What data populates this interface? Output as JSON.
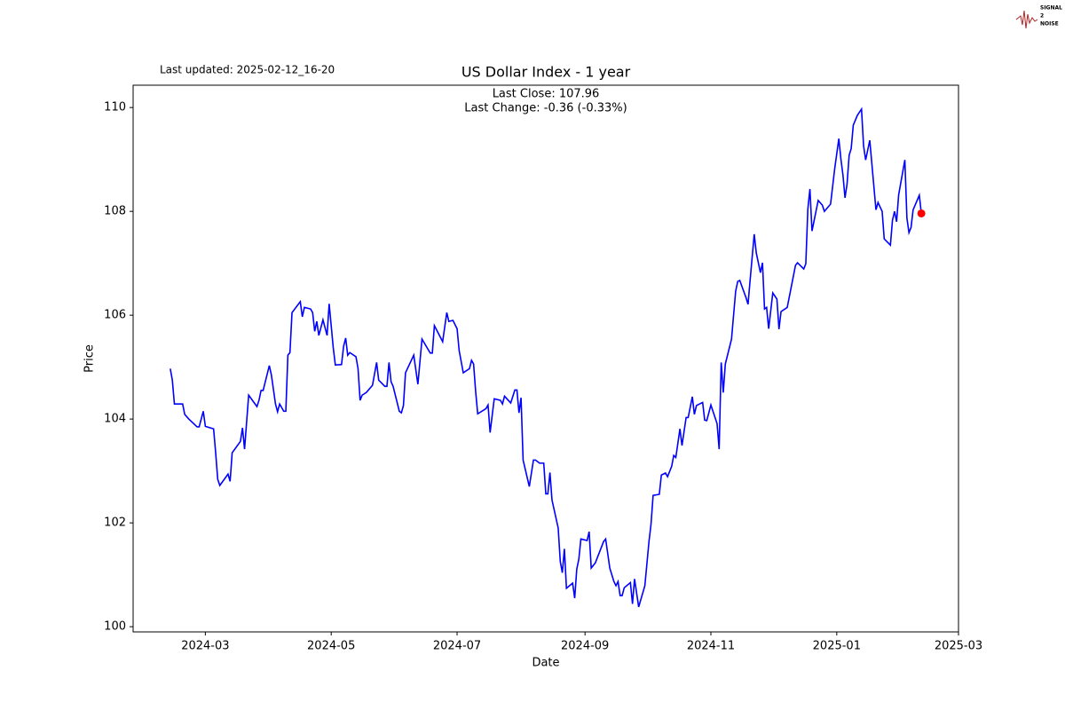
{
  "chart_data": {
    "type": "line",
    "title": "US Dollar Index - 1 year",
    "subtitle": "Last updated: 2025-02-12_16-20",
    "annotations": [
      "Last Close: 107.96",
      "Last Change: -0.36 (-0.33%)"
    ],
    "logo_text": [
      "SIGNAL",
      "2",
      "NOISE"
    ],
    "x_label": "Date",
    "y_label": "Price",
    "color": "#0000ff",
    "last_marker_color": "#ff0000",
    "x": [
      "2024-02-13",
      "2024-02-14",
      "2024-02-15",
      "2024-02-19",
      "2024-02-20",
      "2024-02-22",
      "2024-02-26",
      "2024-02-27",
      "2024-02-29",
      "2024-03-01",
      "2024-03-05",
      "2024-03-06",
      "2024-03-07",
      "2024-03-08",
      "2024-03-12",
      "2024-03-13",
      "2024-03-14",
      "2024-03-18",
      "2024-03-19",
      "2024-03-20",
      "2024-03-22",
      "2024-03-26",
      "2024-03-27",
      "2024-03-28",
      "2024-03-29",
      "2024-04-01",
      "2024-04-02",
      "2024-04-04",
      "2024-04-05",
      "2024-04-06",
      "2024-04-08",
      "2024-04-09",
      "2024-04-10",
      "2024-04-11",
      "2024-04-12",
      "2024-04-16",
      "2024-04-17",
      "2024-04-18",
      "2024-04-21",
      "2024-04-22",
      "2024-04-23",
      "2024-04-24",
      "2024-04-25",
      "2024-04-27",
      "2024-04-29",
      "2024-04-30",
      "2024-05-02",
      "2024-05-03",
      "2024-05-06",
      "2024-05-07",
      "2024-05-08",
      "2024-05-09",
      "2024-05-10",
      "2024-05-13",
      "2024-05-14",
      "2024-05-15",
      "2024-05-16",
      "2024-05-18",
      "2024-05-21",
      "2024-05-23",
      "2024-05-24",
      "2024-05-27",
      "2024-05-28",
      "2024-05-29",
      "2024-05-30",
      "2024-05-31",
      "2024-06-03",
      "2024-06-04",
      "2024-06-05",
      "2024-06-06",
      "2024-06-10",
      "2024-06-12",
      "2024-06-14",
      "2024-06-18",
      "2024-06-19",
      "2024-06-20",
      "2024-06-24",
      "2024-06-26",
      "2024-06-27",
      "2024-06-29",
      "2024-07-01",
      "2024-07-02",
      "2024-07-04",
      "2024-07-07",
      "2024-07-08",
      "2024-07-09",
      "2024-07-10",
      "2024-07-11",
      "2024-07-15",
      "2024-07-16",
      "2024-07-17",
      "2024-07-19",
      "2024-07-22",
      "2024-07-23",
      "2024-07-24",
      "2024-07-27",
      "2024-07-29",
      "2024-07-30",
      "2024-07-31",
      "2024-08-01",
      "2024-08-02",
      "2024-08-05",
      "2024-08-07",
      "2024-08-08",
      "2024-08-10",
      "2024-08-12",
      "2024-08-13",
      "2024-08-14",
      "2024-08-15",
      "2024-08-16",
      "2024-08-19",
      "2024-08-20",
      "2024-08-21",
      "2024-08-22",
      "2024-08-23",
      "2024-08-26",
      "2024-08-27",
      "2024-08-28",
      "2024-08-29",
      "2024-08-30",
      "2024-09-02",
      "2024-09-03",
      "2024-09-04",
      "2024-09-06",
      "2024-09-10",
      "2024-09-11",
      "2024-09-13",
      "2024-09-15",
      "2024-09-16",
      "2024-09-17",
      "2024-09-18",
      "2024-09-19",
      "2024-09-20",
      "2024-09-23",
      "2024-09-24",
      "2024-09-25",
      "2024-09-27",
      "2024-09-30",
      "2024-10-02",
      "2024-10-03",
      "2024-10-04",
      "2024-10-07",
      "2024-10-08",
      "2024-10-10",
      "2024-10-11",
      "2024-10-13",
      "2024-10-14",
      "2024-10-15",
      "2024-10-17",
      "2024-10-18",
      "2024-10-20",
      "2024-10-21",
      "2024-10-23",
      "2024-10-24",
      "2024-10-25",
      "2024-10-28",
      "2024-10-29",
      "2024-10-30",
      "2024-11-01",
      "2024-11-03",
      "2024-11-04",
      "2024-11-05",
      "2024-11-06",
      "2024-11-07",
      "2024-11-08",
      "2024-11-11",
      "2024-11-13",
      "2024-11-14",
      "2024-11-15",
      "2024-11-18",
      "2024-11-19",
      "2024-11-20",
      "2024-11-22",
      "2024-11-23",
      "2024-11-25",
      "2024-11-26",
      "2024-11-27",
      "2024-11-28",
      "2024-11-29",
      "2024-12-01",
      "2024-12-03",
      "2024-12-04",
      "2024-12-05",
      "2024-12-08",
      "2024-12-12",
      "2024-12-13",
      "2024-12-16",
      "2024-12-17",
      "2024-12-18",
      "2024-12-19",
      "2024-12-20",
      "2024-12-23",
      "2024-12-25",
      "2024-12-26",
      "2024-12-29",
      "2024-12-31",
      "2025-01-02",
      "2025-01-03",
      "2025-01-04",
      "2025-01-05",
      "2025-01-06",
      "2025-01-07",
      "2025-01-08",
      "2025-01-09",
      "2025-01-11",
      "2025-01-13",
      "2025-01-14",
      "2025-01-15",
      "2025-01-17",
      "2025-01-20",
      "2025-01-21",
      "2025-01-23",
      "2025-01-24",
      "2025-01-27",
      "2025-01-28",
      "2025-01-29",
      "2025-01-30",
      "2025-01-31",
      "2025-02-03",
      "2025-02-04",
      "2025-02-05",
      "2025-02-06",
      "2025-02-07",
      "2025-02-10",
      "2025-02-11"
    ],
    "values": [
      104.97,
      104.75,
      104.29,
      104.29,
      104.09,
      104.0,
      103.85,
      103.85,
      104.15,
      103.86,
      103.81,
      103.35,
      102.84,
      102.72,
      102.94,
      102.8,
      103.35,
      103.57,
      103.83,
      103.42,
      104.46,
      104.24,
      104.36,
      104.55,
      104.55,
      105.03,
      104.85,
      104.29,
      104.14,
      104.29,
      104.15,
      104.15,
      105.23,
      105.28,
      106.05,
      106.26,
      105.97,
      106.15,
      106.12,
      106.05,
      105.69,
      105.88,
      105.61,
      105.91,
      105.61,
      106.22,
      105.37,
      105.04,
      105.05,
      105.4,
      105.56,
      105.23,
      105.28,
      105.2,
      104.97,
      104.36,
      104.46,
      104.51,
      104.65,
      105.09,
      104.75,
      104.63,
      104.63,
      105.09,
      104.72,
      104.63,
      104.15,
      104.12,
      104.26,
      104.89,
      105.23,
      104.67,
      105.54,
      105.27,
      105.27,
      105.8,
      105.49,
      106.05,
      105.88,
      105.9,
      105.74,
      105.32,
      104.89,
      104.97,
      105.13,
      105.06,
      104.53,
      104.1,
      104.2,
      104.27,
      103.74,
      104.39,
      104.36,
      104.29,
      104.44,
      104.31,
      104.56,
      104.56,
      104.12,
      104.41,
      103.21,
      102.7,
      103.21,
      103.21,
      103.15,
      103.15,
      102.56,
      102.56,
      102.97,
      102.44,
      101.9,
      101.26,
      101.04,
      101.5,
      100.74,
      100.84,
      100.55,
      101.11,
      101.3,
      101.69,
      101.66,
      101.83,
      101.13,
      101.23,
      101.64,
      101.69,
      101.13,
      100.87,
      100.79,
      100.87,
      100.6,
      100.6,
      100.75,
      100.85,
      100.44,
      100.92,
      100.38,
      100.79,
      101.64,
      101.98,
      102.53,
      102.55,
      102.92,
      102.96,
      102.89,
      103.09,
      103.3,
      103.26,
      103.81,
      103.49,
      104.03,
      104.03,
      104.43,
      104.09,
      104.26,
      104.32,
      103.98,
      103.97,
      104.27,
      104.03,
      103.91,
      103.42,
      105.09,
      104.51,
      105.06,
      105.54,
      106.46,
      106.65,
      106.67,
      106.34,
      106.21,
      106.67,
      107.56,
      107.2,
      106.82,
      107.01,
      106.12,
      106.15,
      105.74,
      106.43,
      106.31,
      105.73,
      106.07,
      106.15,
      106.96,
      107.01,
      106.89,
      106.99,
      108.05,
      108.43,
      107.62,
      108.21,
      108.12,
      108.0,
      108.14,
      108.82,
      109.4,
      109.01,
      108.7,
      108.26,
      108.53,
      109.08,
      109.21,
      109.66,
      109.85,
      109.97,
      109.26,
      108.99,
      109.37,
      108.03,
      108.17,
      108.0,
      107.47,
      107.35,
      107.83,
      108.0,
      107.8,
      108.32,
      108.99,
      107.87,
      107.59,
      107.69,
      108.03,
      108.31,
      107.96
    ],
    "xlim": [
      "2024-01-26",
      "2025-03-01"
    ],
    "xticks": [
      {
        "value": "2024-03-01",
        "label": "2024-03"
      },
      {
        "value": "2024-05-01",
        "label": "2024-05"
      },
      {
        "value": "2024-07-01",
        "label": "2024-07"
      },
      {
        "value": "2024-09-01",
        "label": "2024-09"
      },
      {
        "value": "2024-11-01",
        "label": "2024-11"
      },
      {
        "value": "2025-01-01",
        "label": "2025-01"
      },
      {
        "value": "2025-03-01",
        "label": "2025-03"
      }
    ],
    "ylim": [
      99.9,
      110.43
    ],
    "yticks": [
      100,
      102,
      104,
      106,
      108,
      110
    ],
    "grid": false
  }
}
